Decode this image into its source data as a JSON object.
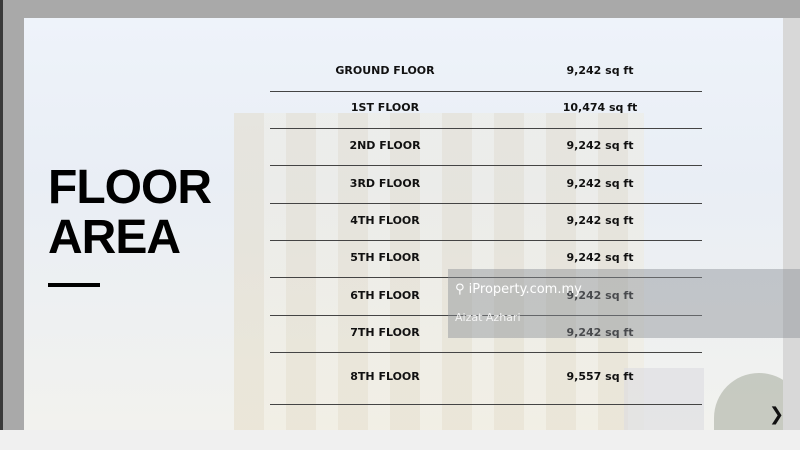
{
  "slide": {
    "title_line1": "FLOOR",
    "title_line2": "AREA",
    "rows": [
      {
        "floor": "GROUND FLOOR",
        "area": "9,242 sq ft"
      },
      {
        "floor": "1ST FLOOR",
        "area": "10,474 sq ft"
      },
      {
        "floor": "2ND FLOOR",
        "area": "9,242 sq ft"
      },
      {
        "floor": "3RD FLOOR",
        "area": "9,242 sq ft"
      },
      {
        "floor": "4TH FLOOR",
        "area": "9,242 sq ft"
      },
      {
        "floor": "5TH FLOOR",
        "area": "9,242 sq ft"
      },
      {
        "floor": "6TH FLOOR",
        "area": "9,242 sq ft"
      },
      {
        "floor": "7TH FLOOR",
        "area": "9,242 sq ft"
      },
      {
        "floor": "8TH FLOOR",
        "area": "9,557 sq ft"
      }
    ],
    "next_icon": "double-chevron-right-icon",
    "next_glyph": "❯❯"
  },
  "watermark": {
    "site": "iProperty.com.my",
    "author": "Aizat Azhari",
    "icon": "location-pin-icon"
  }
}
